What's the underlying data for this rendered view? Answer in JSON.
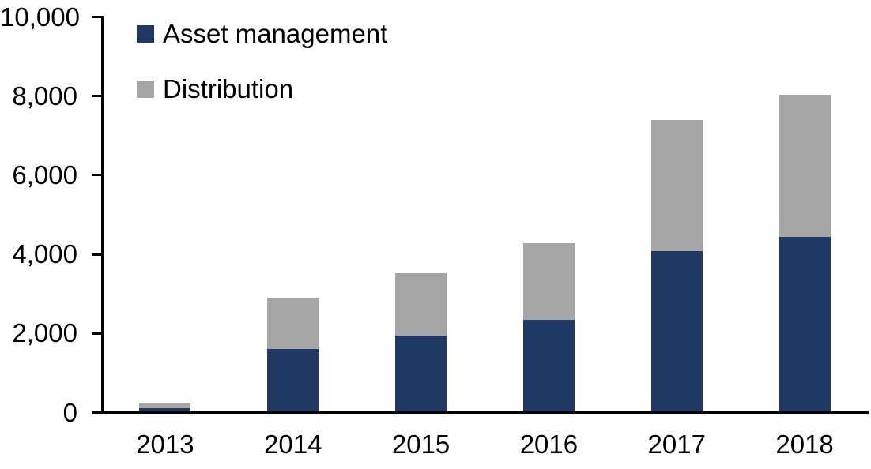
{
  "chart_data": {
    "type": "bar",
    "stacked": true,
    "title": "",
    "xlabel": "",
    "ylabel": "",
    "categories": [
      "2013",
      "2014",
      "2015",
      "2016",
      "2017",
      "2018"
    ],
    "series": [
      {
        "name": "Asset management",
        "color": "#1f3864",
        "values": [
          90,
          1580,
          1920,
          2320,
          4050,
          4410
        ]
      },
      {
        "name": "Distribution",
        "color": "#a6a6a6",
        "values": [
          110,
          1300,
          1580,
          1930,
          3310,
          3590
        ]
      }
    ],
    "totals": [
      200,
      2880,
      3500,
      4250,
      7360,
      8000
    ],
    "ylim": [
      0,
      10000
    ],
    "ytick_interval": 2000,
    "ytick_labels": [
      "0",
      "2,000",
      "4,000",
      "6,000",
      "8,000",
      "10,000"
    ],
    "grid": false,
    "legend_position": "top-left",
    "axis_color": "#000000",
    "text_color": "#000000"
  }
}
